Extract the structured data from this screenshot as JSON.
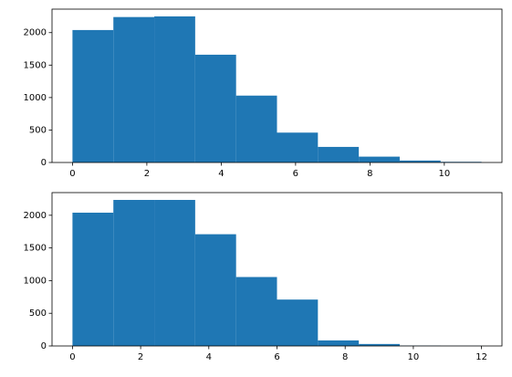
{
  "chart_data": [
    {
      "type": "histogram",
      "color": "#1f77b4",
      "bins": [
        0,
        1.1,
        2.2,
        3.3,
        4.4,
        5.5,
        6.6,
        7.7,
        8.8,
        9.9,
        11
      ],
      "values": [
        2040,
        2240,
        2250,
        1660,
        1030,
        460,
        240,
        90,
        30,
        10
      ],
      "xlim": [
        -0.55,
        11.55
      ],
      "xticks": [
        0,
        2,
        4,
        6,
        8,
        10
      ],
      "ylim": [
        0,
        2362
      ],
      "yticks": [
        0,
        500,
        1000,
        1500,
        2000
      ]
    },
    {
      "type": "histogram",
      "color": "#1f77b4",
      "bins": [
        0,
        1.2,
        2.4,
        3.6,
        4.8,
        6,
        7.2,
        8.4,
        9.6,
        10.8,
        12
      ],
      "values": [
        2040,
        2235,
        2235,
        1710,
        1055,
        710,
        85,
        30,
        5,
        2
      ],
      "xlim": [
        -0.6,
        12.6
      ],
      "xticks": [
        0,
        2,
        4,
        6,
        8,
        10,
        12
      ],
      "ylim": [
        0,
        2347
      ],
      "yticks": [
        0,
        500,
        1000,
        1500,
        2000
      ]
    }
  ]
}
